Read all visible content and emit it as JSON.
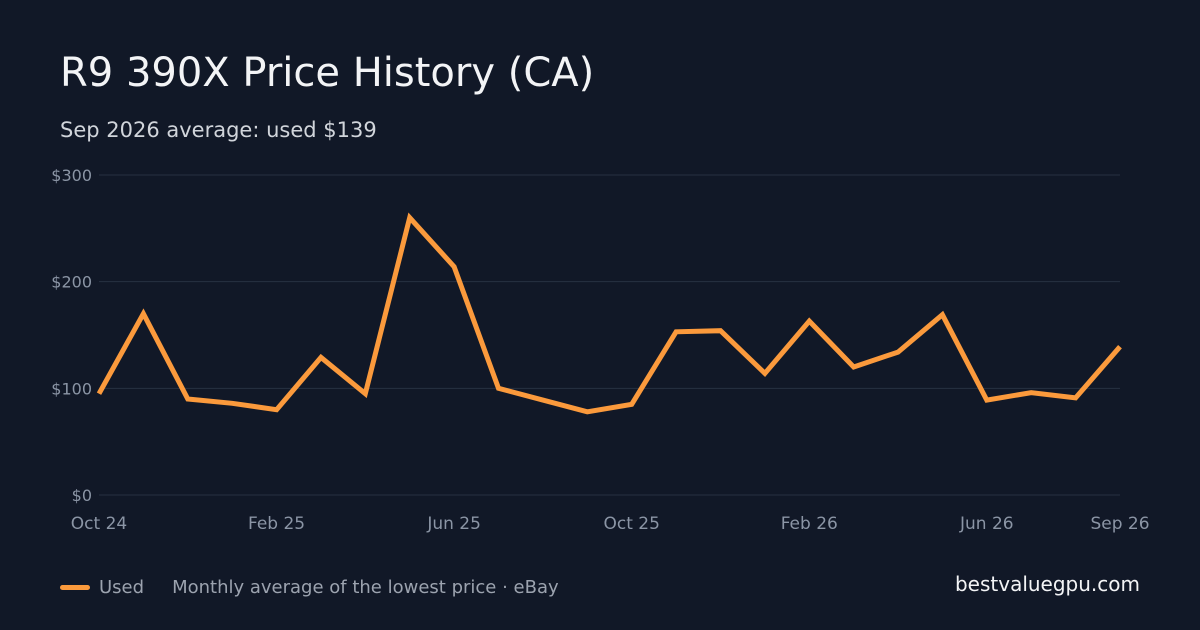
{
  "title": "R9 390X Price History (CA)",
  "subtitle": "Sep 2026 average: used $139",
  "legend": {
    "series_label": "Used",
    "note": "Monthly average of the lowest price · eBay"
  },
  "brand": "bestvaluegpu.com",
  "colors": {
    "background": "#111827",
    "series": "#fb9a3c",
    "grid": "#273142",
    "axis_text": "#8b95a5"
  },
  "chart_data": {
    "type": "line",
    "title": "R9 390X Price History (CA)",
    "subtitle": "Sep 2026 average: used $139",
    "xlabel": "",
    "ylabel": "",
    "x": [
      "Oct 24",
      "Nov 24",
      "Dec 24",
      "Jan 25",
      "Feb 25",
      "Mar 25",
      "Apr 25",
      "May 25",
      "Jun 25",
      "Jul 25",
      "Aug 25",
      "Sep 25",
      "Oct 25",
      "Nov 25",
      "Dec 25",
      "Jan 26",
      "Feb 26",
      "Mar 26",
      "Apr 26",
      "May 26",
      "Jun 26",
      "Jul 26",
      "Aug 26",
      "Sep 26"
    ],
    "x_ticks": [
      "Oct 24",
      "Feb 25",
      "Jun 25",
      "Oct 25",
      "Feb 26",
      "Jun 26",
      "Sep 26"
    ],
    "y_ticks": [
      0,
      100,
      200,
      300
    ],
    "y_tick_labels": [
      "$0",
      "$100",
      "$200",
      "$300"
    ],
    "ylim": [
      0,
      300
    ],
    "grid": true,
    "legend_position": "bottom-left",
    "series": [
      {
        "name": "Used",
        "values": [
          95,
          170,
          90,
          86,
          80,
          129,
          95,
          260,
          214,
          100,
          89,
          78,
          85,
          153,
          154,
          114,
          163,
          120,
          134,
          169,
          89,
          96,
          91,
          139
        ]
      }
    ]
  }
}
